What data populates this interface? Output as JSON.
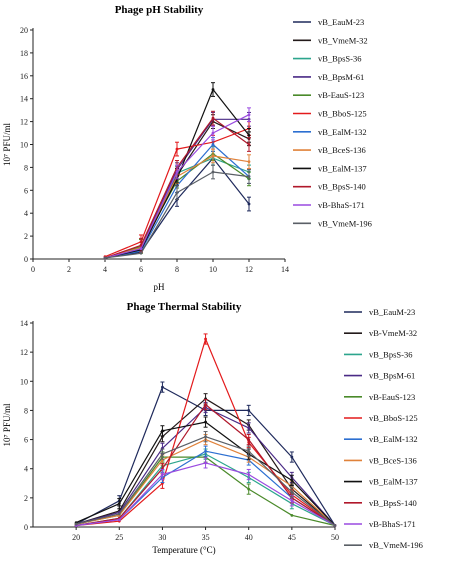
{
  "chart_data": [
    {
      "type": "line",
      "title": "Phage pH Stability",
      "xlabel": "pH",
      "ylabel": "10⁷ PFU/ml",
      "xlim": [
        0,
        14
      ],
      "ylim": [
        0,
        20
      ],
      "xticks": [
        0,
        2,
        4,
        6,
        8,
        10,
        12,
        14
      ],
      "yticks": [
        0,
        2,
        4,
        6,
        8,
        10,
        12,
        14,
        16,
        18,
        20
      ],
      "legend_position": "right",
      "grid": false,
      "x": [
        4,
        6,
        8,
        10,
        12
      ],
      "series": [
        {
          "name": "vB_EauM-23",
          "color": "#1f2a5c",
          "values": [
            0.1,
            0.6,
            5.2,
            8.8,
            4.8
          ]
        },
        {
          "name": "vB_VmeM-32",
          "color": "#231a1a",
          "values": [
            0.1,
            0.8,
            7.3,
            12.0,
            10.5
          ]
        },
        {
          "name": "vB_BpsS-36",
          "color": "#2ca58d",
          "values": [
            0.1,
            0.9,
            7.5,
            8.8,
            7.6
          ]
        },
        {
          "name": "vB_BpsM-61",
          "color": "#4a2a86",
          "values": [
            0.1,
            1.0,
            7.8,
            12.2,
            12.2
          ]
        },
        {
          "name": "vB-EauS-123",
          "color": "#4a8a2a",
          "values": [
            0.1,
            1.1,
            6.8,
            9.2,
            7.0
          ]
        },
        {
          "name": "vB_BboS-125",
          "color": "#e31a1c",
          "values": [
            0.2,
            1.5,
            9.6,
            10.2,
            11.4
          ]
        },
        {
          "name": "vB_EalM-132",
          "color": "#2c6fd1",
          "values": [
            0.1,
            0.7,
            6.4,
            10.0,
            7.2
          ]
        },
        {
          "name": "vB_BceS-136",
          "color": "#e0823a",
          "values": [
            0.1,
            1.0,
            7.2,
            9.0,
            8.5
          ]
        },
        {
          "name": "vB_EalM-137",
          "color": "#111111",
          "values": [
            0.1,
            0.8,
            7.0,
            14.8,
            10.8
          ]
        },
        {
          "name": "vB_BpsS-140",
          "color": "#b0182b",
          "values": [
            0.1,
            1.2,
            8.0,
            12.3,
            10.0
          ]
        },
        {
          "name": "vB-BhaS-171",
          "color": "#9a4ae0",
          "values": [
            0.1,
            0.9,
            7.6,
            11.0,
            12.6
          ]
        },
        {
          "name": "vB_VmeM-196",
          "color": "#5a5f66",
          "values": [
            0.1,
            0.5,
            5.8,
            7.6,
            7.2
          ]
        }
      ]
    },
    {
      "type": "line",
      "title": "Phage Thermal Stability",
      "xlabel": "Temperature (°C)",
      "ylabel": "10⁷ PFU/ml",
      "xlim": [
        15,
        50
      ],
      "ylim": [
        0,
        14
      ],
      "xticks": [
        20,
        25,
        30,
        35,
        40,
        45,
        50
      ],
      "yticks": [
        0,
        2,
        4,
        6,
        8,
        10,
        12,
        14
      ],
      "legend_position": "right",
      "grid": false,
      "x": [
        20,
        25,
        30,
        35,
        40,
        45,
        50
      ],
      "series": [
        {
          "name": "vB_EauM-23",
          "color": "#1f2a5c",
          "values": [
            0.2,
            1.8,
            9.6,
            8.0,
            8.0,
            4.8,
            0.1
          ]
        },
        {
          "name": "vB-VmeM-32",
          "color": "#231a1a",
          "values": [
            0.2,
            1.1,
            6.2,
            8.8,
            7.0,
            2.6,
            0.1
          ]
        },
        {
          "name": "vB_BpsS-36",
          "color": "#2ca58d",
          "values": [
            0.1,
            0.6,
            4.2,
            5.0,
            3.4,
            1.6,
            0.1
          ]
        },
        {
          "name": "vB_BpsM-61",
          "color": "#4a2a86",
          "values": [
            0.2,
            1.0,
            5.4,
            8.2,
            6.8,
            3.4,
            0.1
          ]
        },
        {
          "name": "vB-EauS-123",
          "color": "#4a8a2a",
          "values": [
            0.2,
            0.8,
            4.8,
            4.8,
            2.6,
            0.8,
            0.1
          ]
        },
        {
          "name": "vB_BboS-125",
          "color": "#e31a1c",
          "values": [
            0.1,
            0.4,
            3.0,
            12.9,
            5.8,
            2.2,
            0.1
          ]
        },
        {
          "name": "vB_EalM-132",
          "color": "#2c6fd1",
          "values": [
            0.1,
            0.5,
            3.4,
            5.2,
            4.6,
            2.0,
            0.1
          ]
        },
        {
          "name": "vB_BceS-136",
          "color": "#e0823a",
          "values": [
            0.2,
            0.8,
            4.6,
            6.0,
            4.8,
            2.8,
            0.1
          ]
        },
        {
          "name": "vB_EalM-137",
          "color": "#111111",
          "values": [
            0.3,
            1.6,
            6.6,
            7.2,
            5.0,
            3.2,
            0.1
          ]
        },
        {
          "name": "vB_BpsS-140",
          "color": "#b0182b",
          "values": [
            0.1,
            0.6,
            4.0,
            8.4,
            6.0,
            2.0,
            0.1
          ]
        },
        {
          "name": "vB-BhaS-171",
          "color": "#9a4ae0",
          "values": [
            0.1,
            0.5,
            3.6,
            4.4,
            3.6,
            1.8,
            0.1
          ]
        },
        {
          "name": "vB_VmeM-196",
          "color": "#5a5f66",
          "values": [
            0.2,
            0.9,
            5.0,
            6.2,
            5.2,
            2.4,
            0.1
          ]
        }
      ]
    }
  ]
}
